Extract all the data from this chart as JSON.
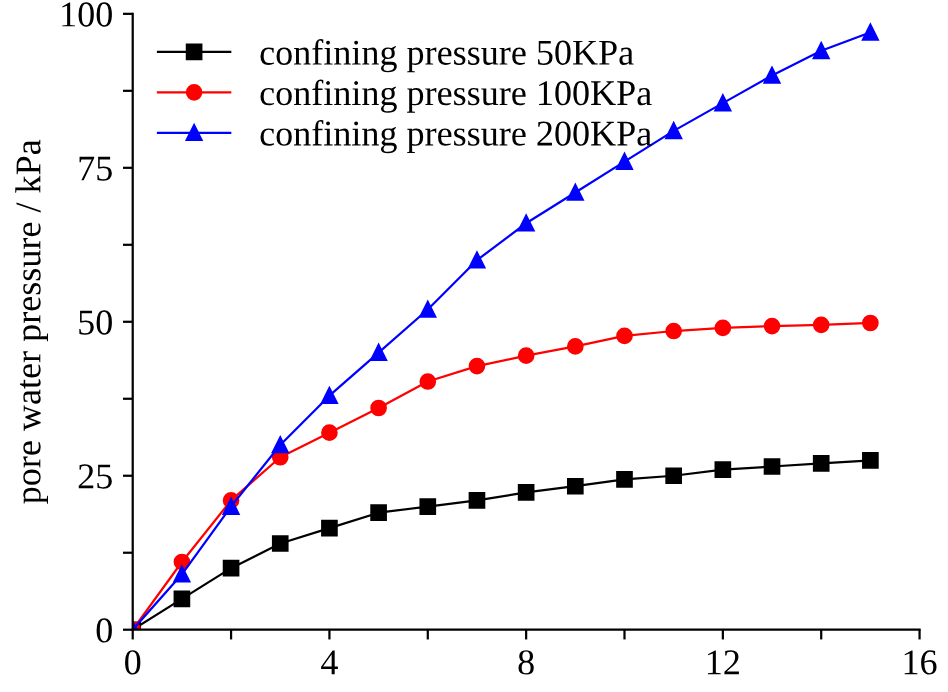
{
  "chart_data": {
    "type": "line",
    "ylabel": "pore water pressure / kPa",
    "x": [
      0,
      1,
      2,
      3,
      4,
      5,
      6,
      7,
      8,
      9,
      10,
      11,
      12,
      13,
      14,
      15
    ],
    "series": [
      {
        "name": "confining pressure 50KPa",
        "color": "#000000",
        "marker": "square",
        "values": [
          0,
          5,
          10,
          14,
          16.5,
          19,
          20,
          21,
          22.3,
          23.3,
          24.4,
          25,
          26,
          26.5,
          27,
          27.5
        ]
      },
      {
        "name": "confining pressure 100KPa",
        "color": "#ff0000",
        "marker": "circle",
        "values": [
          0,
          11,
          21,
          28,
          32,
          36,
          40.3,
          42.8,
          44.5,
          46,
          47.7,
          48.5,
          49,
          49.3,
          49.5,
          49.8
        ]
      },
      {
        "name": "confining pressure 200KPa",
        "color": "#0000ff",
        "marker": "triangle",
        "values": [
          0,
          9,
          20,
          30,
          38,
          45,
          52,
          60,
          66,
          71,
          76,
          81,
          85.5,
          90,
          94,
          97
        ]
      }
    ],
    "xlim": [
      0,
      16
    ],
    "ylim": [
      0,
      100
    ],
    "xticks": [
      0,
      {
        "value": 2,
        "label": null
      },
      4,
      {
        "value": 6,
        "label": null
      },
      8,
      {
        "value": 10,
        "label": null
      },
      12,
      {
        "value": 14,
        "label": null
      },
      16
    ],
    "yticks": [
      0,
      {
        "value": 12.5,
        "label": null
      },
      25,
      {
        "value": 37.5,
        "label": null
      },
      50,
      {
        "value": 62.5,
        "label": null
      },
      75,
      {
        "value": 87.5,
        "label": null
      },
      100
    ],
    "grid": false,
    "legend": "top left",
    "line_style": "solid"
  }
}
